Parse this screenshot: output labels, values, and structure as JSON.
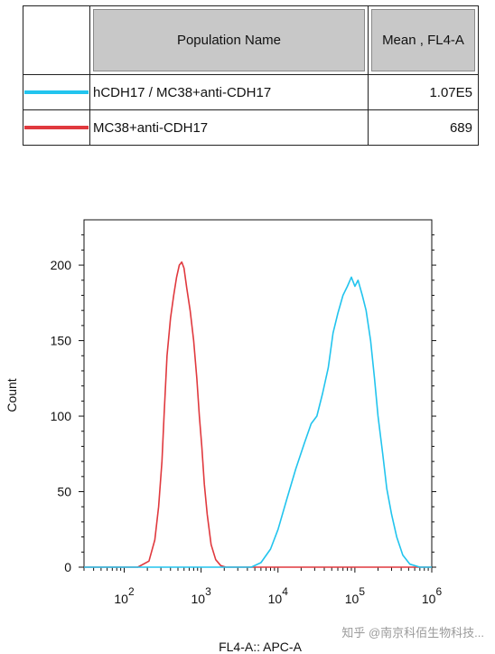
{
  "legend_table": {
    "headers": [
      "Population Name",
      "Mean , FL4-A"
    ],
    "rows": [
      {
        "name": "hCDH17 / MC38+anti-CDH17",
        "value": "1.07E5",
        "color": "#22c4ee"
      },
      {
        "name": "MC38+anti-CDH17",
        "value": "689",
        "color": "#e0393e"
      }
    ]
  },
  "watermark": "知乎 @南京科佰生物科技...",
  "chart_data": {
    "type": "line",
    "xscale": "log",
    "xlabel": "FL4-A:: APC-A",
    "ylabel": "Count",
    "xlim": [
      30,
      1000000
    ],
    "ylim": [
      0,
      230
    ],
    "yticks": [
      0,
      50,
      100,
      150,
      200
    ],
    "xticks": [
      {
        "value": 100,
        "base": "10",
        "exp": "2"
      },
      {
        "value": 1000,
        "base": "10",
        "exp": "3"
      },
      {
        "value": 10000,
        "base": "10",
        "exp": "4"
      },
      {
        "value": 100000,
        "base": "10",
        "exp": "5"
      },
      {
        "value": 1000000,
        "base": "10",
        "exp": "6"
      }
    ],
    "series": [
      {
        "name": "MC38+anti-CDH17",
        "color": "#e0393e",
        "points": [
          [
            30,
            0
          ],
          [
            150,
            0
          ],
          [
            210,
            4
          ],
          [
            250,
            18
          ],
          [
            280,
            40
          ],
          [
            310,
            70
          ],
          [
            330,
            100
          ],
          [
            360,
            140
          ],
          [
            400,
            165
          ],
          [
            440,
            180
          ],
          [
            480,
            192
          ],
          [
            520,
            200
          ],
          [
            560,
            202
          ],
          [
            600,
            198
          ],
          [
            650,
            185
          ],
          [
            720,
            170
          ],
          [
            800,
            150
          ],
          [
            880,
            125
          ],
          [
            950,
            100
          ],
          [
            1020,
            80
          ],
          [
            1100,
            55
          ],
          [
            1200,
            35
          ],
          [
            1350,
            15
          ],
          [
            1550,
            5
          ],
          [
            1800,
            1
          ],
          [
            2100,
            0
          ],
          [
            1000000,
            0
          ]
        ]
      },
      {
        "name": "hCDH17 / MC38+anti-CDH17",
        "color": "#22c4ee",
        "points": [
          [
            30,
            0
          ],
          [
            4500,
            0
          ],
          [
            6000,
            3
          ],
          [
            8000,
            12
          ],
          [
            10000,
            25
          ],
          [
            13000,
            45
          ],
          [
            17000,
            65
          ],
          [
            22000,
            82
          ],
          [
            27000,
            95
          ],
          [
            32000,
            100
          ],
          [
            38000,
            115
          ],
          [
            45000,
            132
          ],
          [
            52000,
            155
          ],
          [
            60000,
            168
          ],
          [
            70000,
            180
          ],
          [
            80000,
            186
          ],
          [
            90000,
            192
          ],
          [
            100000,
            186
          ],
          [
            110000,
            190
          ],
          [
            125000,
            180
          ],
          [
            140000,
            170
          ],
          [
            160000,
            150
          ],
          [
            180000,
            125
          ],
          [
            200000,
            100
          ],
          [
            230000,
            75
          ],
          [
            260000,
            52
          ],
          [
            300000,
            35
          ],
          [
            350000,
            20
          ],
          [
            420000,
            8
          ],
          [
            520000,
            2
          ],
          [
            700000,
            0
          ],
          [
            1000000,
            0
          ]
        ]
      }
    ]
  }
}
